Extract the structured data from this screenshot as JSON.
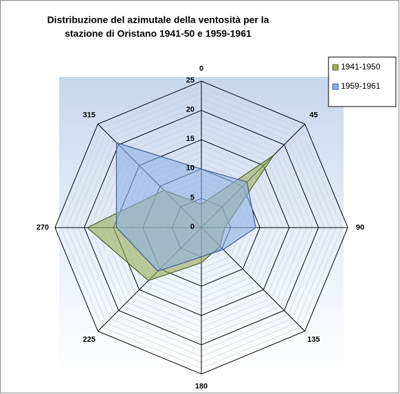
{
  "chart_data": {
    "type": "radar",
    "title": [
      "Distribuzione del azimutale della ventosità per la",
      "stazione di Oristano 1941-50 e 1959-1961"
    ],
    "categories": [
      "0",
      "45",
      "90",
      "135",
      "180",
      "225",
      "270",
      "315"
    ],
    "series": [
      {
        "name": "1941-1950",
        "color": "#9bad5c",
        "stroke": "#4f6228",
        "values": [
          4,
          17.5,
          4,
          4.5,
          6,
          12.8,
          19.5,
          9
        ]
      },
      {
        "name": "1959-1961",
        "color": "#8eb0e2",
        "stroke": "#3d5f9a",
        "values": [
          10,
          11,
          9.3,
          5.3,
          5,
          10.5,
          14.5,
          20.5
        ]
      }
    ],
    "ylim": [
      0,
      25
    ],
    "yticks": [
      0,
      5,
      10,
      15,
      20,
      25
    ],
    "grid": true,
    "legend": "upper right"
  }
}
